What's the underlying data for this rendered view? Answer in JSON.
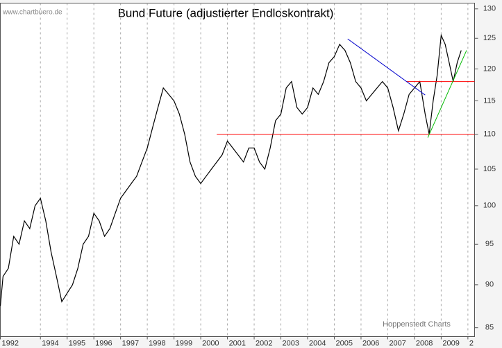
{
  "chart_data": {
    "type": "line",
    "title": "Bund Future (adjustierter Endloskontrakt)",
    "source": "www.chartbuero.de",
    "credit": "Hoppenstedt Charts",
    "x": [
      1992.5,
      1992.6,
      1992.8,
      1993.0,
      1993.2,
      1993.4,
      1993.6,
      1993.8,
      1994.0,
      1994.2,
      1994.4,
      1994.6,
      1994.8,
      1995.0,
      1995.2,
      1995.4,
      1995.6,
      1995.8,
      1996.0,
      1996.2,
      1996.4,
      1996.6,
      1996.8,
      1997.0,
      1997.2,
      1997.4,
      1997.6,
      1997.8,
      1998.0,
      1998.2,
      1998.4,
      1998.6,
      1998.8,
      1999.0,
      1999.2,
      1999.4,
      1999.6,
      1999.8,
      2000.0,
      2000.2,
      2000.4,
      2000.6,
      2000.8,
      2001.0,
      2001.2,
      2001.4,
      2001.6,
      2001.8,
      2002.0,
      2002.2,
      2002.4,
      2002.6,
      2002.8,
      2003.0,
      2003.2,
      2003.4,
      2003.6,
      2003.8,
      2004.0,
      2004.2,
      2004.4,
      2004.6,
      2004.8,
      2005.0,
      2005.2,
      2005.4,
      2005.6,
      2005.8,
      2006.0,
      2006.2,
      2006.4,
      2006.6,
      2006.8,
      2007.0,
      2007.2,
      2007.4,
      2007.6,
      2007.8,
      2008.0,
      2008.2,
      2008.4,
      2008.55,
      2008.7,
      2008.85,
      2009.0,
      2009.15,
      2009.3,
      2009.45,
      2009.6,
      2009.75
    ],
    "series": [
      {
        "color": "#000000",
        "values": [
          87.5,
          91,
          92,
          96,
          95,
          98,
          97,
          100,
          101,
          98,
          94,
          91,
          88,
          89,
          90,
          92,
          95,
          96,
          99,
          98,
          96,
          97,
          99,
          101,
          102,
          103,
          104,
          106,
          108,
          111,
          114,
          117,
          116,
          115,
          113,
          110,
          106,
          104,
          103,
          104,
          105,
          106,
          107,
          109,
          108,
          107,
          106,
          108,
          108,
          106,
          105,
          108,
          112,
          113,
          117,
          118,
          114,
          113,
          114,
          117,
          116,
          118,
          121,
          122,
          124,
          123,
          121,
          118,
          117,
          115,
          116,
          117,
          118,
          117,
          114,
          110.5,
          113,
          116,
          117,
          118,
          113,
          110,
          115,
          119,
          125.5,
          124,
          121,
          118,
          121,
          123
        ]
      }
    ],
    "lines": [
      {
        "color": "#ff0000",
        "x": [
          2000.6,
          2010.25
        ],
        "values": [
          110,
          110
        ]
      },
      {
        "color": "#ff0000",
        "x": [
          2007.7,
          2010.25
        ],
        "values": [
          118,
          118
        ]
      },
      {
        "color": "#0000cc",
        "x": [
          2005.5,
          2008.4
        ],
        "values": [
          124.9,
          115.9
        ]
      },
      {
        "color": "#00bb00",
        "x": [
          2008.5,
          2009.95
        ],
        "values": [
          109.5,
          123
        ]
      }
    ],
    "xlim": [
      1992.5,
      2010.25
    ],
    "xticks": [
      {
        "value": 1992.5,
        "label": "1992"
      },
      1994,
      1995,
      1996,
      1997,
      1998,
      1999,
      2000,
      2001,
      2002,
      2003,
      2004,
      2005,
      2006,
      2007,
      2008,
      2009,
      {
        "value": 2010,
        "label": "2"
      }
    ],
    "ylim": [
      84,
      131
    ],
    "yticks": [
      85,
      90,
      95,
      100,
      105,
      110,
      115,
      120,
      125,
      130
    ],
    "log_scale": true,
    "grid": "x"
  }
}
